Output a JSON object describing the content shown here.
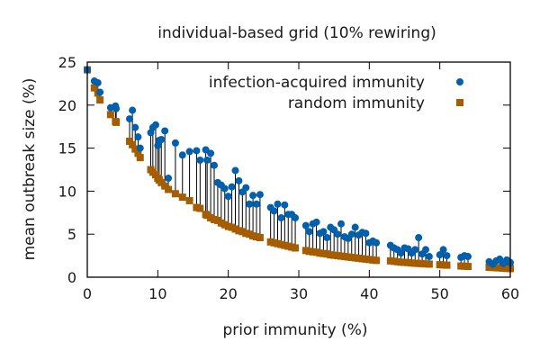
{
  "chart_data": {
    "type": "scatter",
    "title": "individual-based grid (10% rewiring)",
    "xlabel": "prior immunity (%)",
    "ylabel": "mean outbreak size (%)",
    "xlim": [
      0,
      60
    ],
    "ylim": [
      0,
      25
    ],
    "xticks": [
      0,
      10,
      20,
      30,
      40,
      50,
      60
    ],
    "yticks": [
      0,
      5,
      10,
      15,
      20,
      25
    ],
    "grid": false,
    "legend_position": "top-right",
    "colors": {
      "infection": "#0060ad",
      "random": "#a55d00",
      "stem": "#000000"
    },
    "series": [
      {
        "name": "infection-acquired immunity",
        "marker": "circle",
        "x": [
          0,
          1,
          1.5,
          1.8,
          3.3,
          4,
          4.1,
          6,
          6.4,
          6.8,
          7.2,
          7.5,
          9,
          9.3,
          9.7,
          10,
          10.2,
          10.5,
          11,
          11.5,
          12.5,
          13.5,
          14.5,
          15.5,
          16,
          16.8,
          17,
          17.5,
          18,
          18.5,
          19,
          19.5,
          20,
          20.5,
          21,
          21.5,
          22,
          22.5,
          23,
          23.5,
          24,
          24.5,
          26,
          26.5,
          27,
          27.5,
          28,
          28.5,
          29,
          29.5,
          31,
          31.5,
          32,
          32.5,
          33,
          33.5,
          34,
          34.5,
          35,
          35.5,
          36,
          36.5,
          37,
          37.5,
          38,
          38.5,
          39,
          39.5,
          40,
          40.5,
          41,
          43,
          43.5,
          44,
          44.5,
          45,
          45.5,
          46,
          46.5,
          47,
          47.5,
          48,
          48.5,
          50,
          50.5,
          51,
          53,
          53.5,
          54,
          57,
          57.5,
          58,
          58.5,
          59,
          59.5,
          60
        ],
        "values": [
          24.1,
          22.8,
          22.6,
          21.5,
          19.7,
          19.9,
          19.6,
          18.4,
          19.4,
          17.4,
          16.3,
          15.0,
          16.8,
          17.4,
          17.7,
          15.3,
          15.9,
          16.0,
          17.0,
          11.5,
          15.6,
          14.2,
          14.6,
          14.7,
          13.6,
          14.8,
          13.6,
          14.4,
          13.0,
          11.0,
          10.7,
          10.3,
          9.4,
          10.5,
          12.4,
          11.2,
          9.9,
          10.4,
          8.5,
          9.5,
          8.5,
          9.6,
          8.1,
          7.7,
          8.5,
          6.9,
          8.4,
          7.3,
          7.3,
          6.9,
          6.0,
          5.3,
          6.2,
          6.4,
          5.1,
          5.3,
          4.6,
          5.8,
          5.5,
          5.0,
          6.2,
          4.7,
          4.5,
          5.0,
          5.8,
          4.9,
          5.2,
          5.1,
          4.0,
          4.2,
          4.0,
          3.7,
          3.4,
          3.2,
          2.8,
          3.4,
          3.3,
          2.8,
          3.2,
          4.6,
          2.7,
          3.2,
          2.4,
          2.6,
          3.2,
          2.5,
          2.3,
          2.5,
          2.4,
          1.8,
          1.5,
          1.9,
          2.1,
          1.6,
          2.0,
          1.7
        ],
        "pair_x": [
          0,
          1,
          1.5,
          1.8,
          3.3,
          4,
          4.1,
          6,
          6.4,
          6.8,
          7.2,
          7.5,
          9,
          9.3,
          9.7,
          10,
          10.2,
          10.5,
          11,
          11.5,
          12.5,
          13.5,
          14.5,
          15.5,
          16,
          16.8,
          17,
          17.5,
          18,
          18.5,
          19,
          19.5,
          20,
          20.5,
          21,
          21.5,
          22,
          22.5,
          23,
          23.5,
          24,
          24.5,
          26,
          26.5,
          27,
          27.5,
          28,
          28.5,
          29,
          29.5,
          31,
          31.5,
          32,
          32.5,
          33,
          33.5,
          34,
          34.5,
          35,
          35.5,
          36,
          36.5,
          37,
          37.5,
          38,
          38.5,
          39,
          39.5,
          40,
          40.5,
          41,
          43,
          43.5,
          44,
          44.5,
          45,
          45.5,
          46,
          46.5,
          47,
          47.5,
          48,
          48.5,
          50,
          50.5,
          51,
          53,
          53.5,
          54,
          57,
          57.5,
          58,
          58.5,
          59,
          59.5,
          60
        ]
      },
      {
        "name": "random immunity",
        "marker": "square",
        "x": [
          0,
          1,
          1.5,
          1.8,
          3.3,
          4,
          4.1,
          6,
          6.4,
          6.8,
          7.2,
          7.5,
          9,
          9.3,
          9.7,
          10,
          10.2,
          10.5,
          11,
          11.5,
          12.5,
          13.5,
          14.5,
          15.5,
          16,
          16.8,
          17,
          17.5,
          18,
          18.5,
          19,
          19.5,
          20,
          20.5,
          21,
          21.5,
          22,
          22.5,
          23,
          23.5,
          24,
          24.5,
          26,
          26.5,
          27,
          27.5,
          28,
          28.5,
          29,
          29.5,
          31,
          31.5,
          32,
          32.5,
          33,
          33.5,
          34,
          34.5,
          35,
          35.5,
          36,
          36.5,
          37,
          37.5,
          38,
          38.5,
          39,
          39.5,
          40,
          40.5,
          41,
          43,
          43.5,
          44,
          44.5,
          45,
          45.5,
          46,
          46.5,
          47,
          47.5,
          48,
          48.5,
          50,
          50.5,
          51,
          53,
          53.5,
          54,
          57,
          57.5,
          58,
          58.5,
          59,
          59.5,
          60
        ],
        "values": [
          24.1,
          22.0,
          21.4,
          20.6,
          18.9,
          18.1,
          18.0,
          15.8,
          15.4,
          14.9,
          14.4,
          13.9,
          12.5,
          12.2,
          11.9,
          11.5,
          11.3,
          11.0,
          10.6,
          10.2,
          9.7,
          9.3,
          8.9,
          8.1,
          8.0,
          7.3,
          7.2,
          6.9,
          6.7,
          6.6,
          6.3,
          6.1,
          5.9,
          5.8,
          5.6,
          5.4,
          5.3,
          5.1,
          5.0,
          4.8,
          4.7,
          4.6,
          4.1,
          4.0,
          3.9,
          3.8,
          3.7,
          3.6,
          3.5,
          3.4,
          3.1,
          3.0,
          2.95,
          2.9,
          2.8,
          2.75,
          2.7,
          2.6,
          2.55,
          2.5,
          2.45,
          2.4,
          2.35,
          2.3,
          2.25,
          2.2,
          2.15,
          2.1,
          2.05,
          2.0,
          1.95,
          1.9,
          1.85,
          1.8,
          1.75,
          1.72,
          1.7,
          1.65,
          1.62,
          1.6,
          1.58,
          1.55,
          1.52,
          1.45,
          1.42,
          1.4,
          1.3,
          1.28,
          1.25,
          1.15,
          1.12,
          1.1,
          1.08,
          1.05,
          1.02,
          1.0
        ]
      }
    ]
  }
}
